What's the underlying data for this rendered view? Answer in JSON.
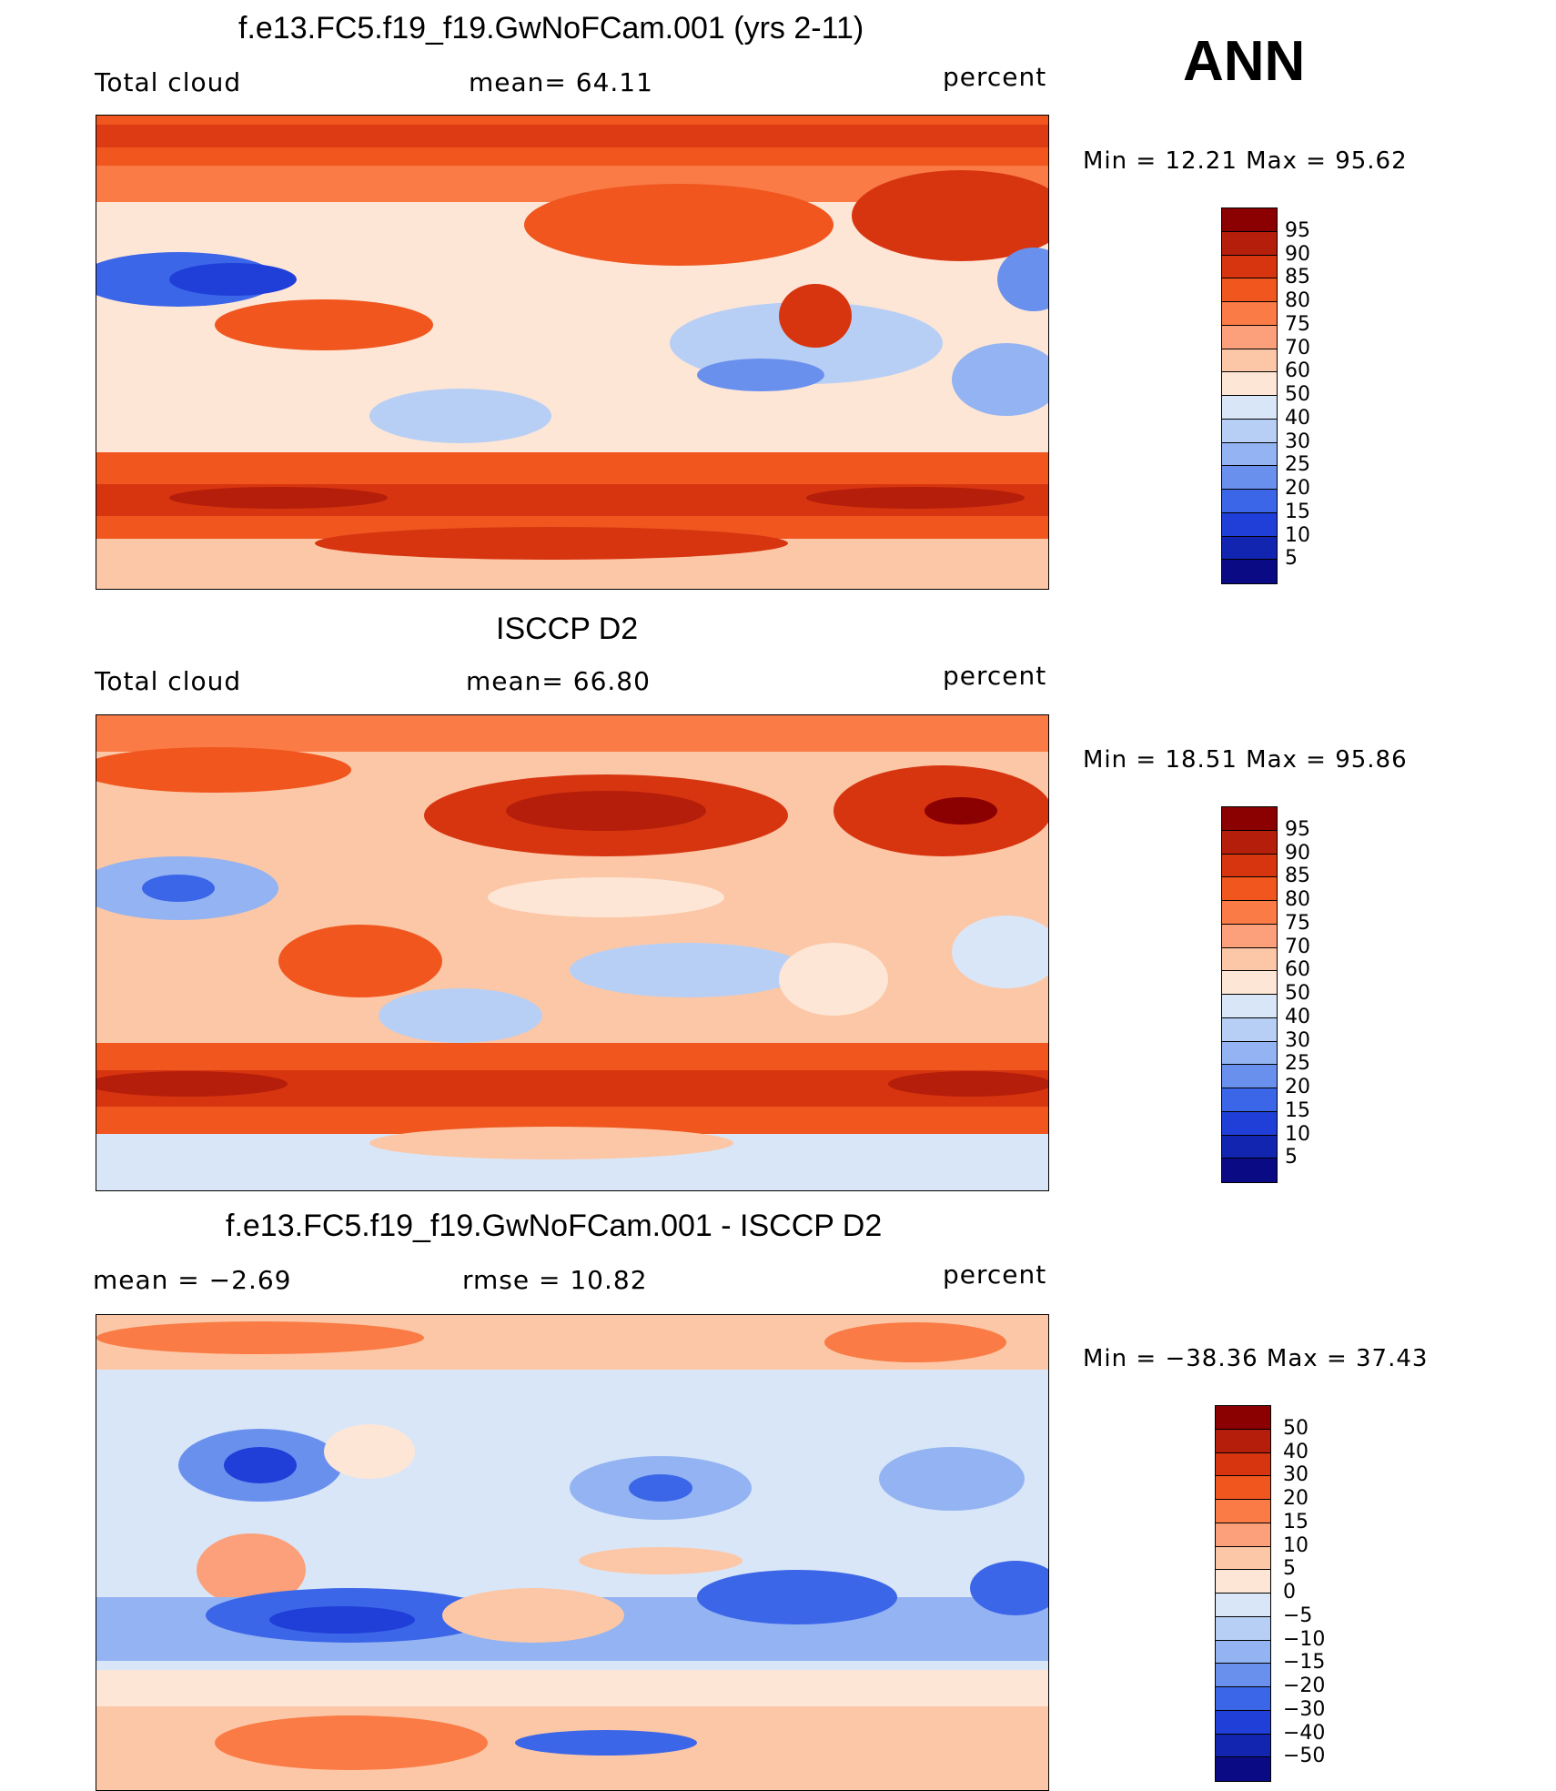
{
  "season": "ANN",
  "panels": [
    {
      "title": "f.e13.FC5.f19_f19.GwNoFCam.001 (yrs 2-11)",
      "left_label": "Total cloud",
      "center_label": "mean=   64.11",
      "units": "percent",
      "minmax": "Min =   12.21  Max =   95.62",
      "colorbar_levels": [
        "95",
        "90",
        "85",
        "80",
        "75",
        "70",
        "60",
        "50",
        "40",
        "30",
        "25",
        "20",
        "15",
        "10",
        "5"
      ],
      "colorbar_colors": [
        "#8b0000",
        "#b51e0a",
        "#d73510",
        "#f0561e",
        "#fa7b45",
        "#fba07a",
        "#fcc7a6",
        "#fde6d6",
        "#d9e6f8",
        "#b8cff5",
        "#93b3f2",
        "#6a90ee",
        "#3c66e8",
        "#1f3fd8",
        "#1225b0",
        "#0a0a85"
      ]
    },
    {
      "title": "ISCCP D2",
      "left_label": "Total cloud",
      "center_label": "mean=   66.80",
      "units": "percent",
      "minmax": "Min =   18.51  Max =   95.86",
      "colorbar_levels": [
        "95",
        "90",
        "85",
        "80",
        "75",
        "70",
        "60",
        "50",
        "40",
        "30",
        "25",
        "20",
        "15",
        "10",
        "5"
      ],
      "colorbar_colors": [
        "#8b0000",
        "#b51e0a",
        "#d73510",
        "#f0561e",
        "#fa7b45",
        "#fba07a",
        "#fcc7a6",
        "#fde6d6",
        "#d9e6f8",
        "#b8cff5",
        "#93b3f2",
        "#6a90ee",
        "#3c66e8",
        "#1f3fd8",
        "#1225b0",
        "#0a0a85"
      ]
    },
    {
      "title": "f.e13.FC5.f19_f19.GwNoFCam.001 - ISCCP D2",
      "left_label": "mean =   −2.69",
      "center_label": "rmse =   10.82",
      "units": "percent",
      "minmax": "Min = −38.36  Max =   37.43",
      "colorbar_levels": [
        "50",
        "40",
        "30",
        "20",
        "15",
        "10",
        "5",
        "0",
        "−5",
        "−10",
        "−15",
        "−20",
        "−30",
        "−40",
        "−50"
      ],
      "colorbar_colors": [
        "#8b0000",
        "#b51e0a",
        "#d73510",
        "#f0561e",
        "#fa7b45",
        "#fba07a",
        "#fcc7a6",
        "#fde6d6",
        "#d9e6f8",
        "#b8cff5",
        "#93b3f2",
        "#6a90ee",
        "#3c66e8",
        "#1f3fd8",
        "#1225b0",
        "#0a0a85"
      ]
    }
  ]
}
